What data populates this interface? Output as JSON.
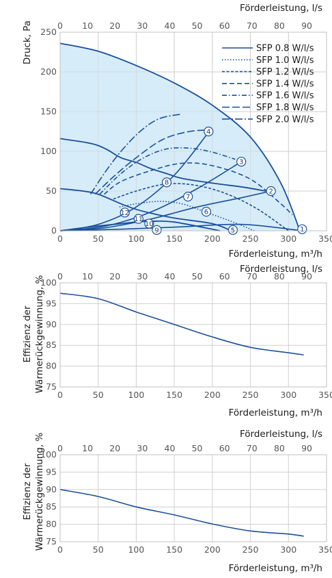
{
  "chart_data": [
    {
      "type": "line",
      "xlabel": "Förderleistung, m³/h",
      "x2label": "Förderleistung, l/s",
      "ylabel": "Druck, Pa",
      "xlim": [
        0,
        350
      ],
      "x2lim": [
        0,
        97.22
      ],
      "ylim": [
        0,
        250
      ],
      "xticks": [
        0,
        50,
        100,
        150,
        200,
        250,
        300,
        350
      ],
      "x2ticks": [
        0,
        10,
        20,
        30,
        40,
        50,
        60,
        70,
        80,
        90
      ],
      "yticks": [
        0,
        50,
        100,
        150,
        200,
        250
      ],
      "grid": true,
      "legend_position": "top-right",
      "colors": {
        "line": "#1b4f9c",
        "fill": "#d6ecf8",
        "grid": "#cfcfcf",
        "marker_fill": "#ffffff"
      },
      "fan_curves": [
        {
          "id": "1",
          "points": [
            [
              0,
              236
            ],
            [
              50,
              226
            ],
            [
              100,
              208
            ],
            [
              150,
              186
            ],
            [
              200,
              158
            ],
            [
              250,
              118
            ],
            [
              290,
              60
            ],
            [
              315,
              0
            ]
          ]
        },
        {
          "id": "2",
          "points": [
            [
              0,
              116
            ],
            [
              40,
              110
            ],
            [
              60,
              103
            ],
            [
              80,
              92
            ],
            [
              100,
              86
            ],
            [
              120,
              78
            ],
            [
              140,
              72
            ],
            [
              160,
              66
            ],
            [
              200,
              60
            ],
            [
              240,
              55
            ],
            [
              270,
              50
            ]
          ]
        },
        {
          "id": "5",
          "points": [
            [
              0,
              53
            ],
            [
              30,
              50
            ],
            [
              50,
              46
            ],
            [
              80,
              34
            ],
            [
              100,
              27
            ],
            [
              120,
              22
            ],
            [
              150,
              16
            ],
            [
              200,
              9
            ],
            [
              225,
              0
            ]
          ]
        },
        {
          "id": "9",
          "points": [
            [
              0,
              0
            ],
            [
              40,
              5
            ],
            [
              80,
              9
            ],
            [
              100,
              11
            ],
            [
              120,
              12
            ],
            [
              150,
              11
            ],
            [
              210,
              0
            ]
          ]
        }
      ],
      "system_curves": [
        {
          "id": "4",
          "points": [
            [
              0,
              0
            ],
            [
              50,
              8
            ],
            [
              100,
              30
            ],
            [
              150,
              70
            ],
            [
              195,
              124
            ]
          ]
        },
        {
          "id": "3",
          "points": [
            [
              0,
              0
            ],
            [
              60,
              6
            ],
            [
              120,
              24
            ],
            [
              180,
              53
            ],
            [
              238,
              87
            ]
          ]
        },
        {
          "id": "2",
          "points": [
            [
              0,
              0
            ],
            [
              60,
              4
            ],
            [
              120,
              15
            ],
            [
              180,
              30
            ],
            [
              240,
              42
            ],
            [
              277,
              50
            ]
          ]
        },
        {
          "id": "1",
          "points": [
            [
              0,
              0
            ],
            [
              80,
              2
            ],
            [
              160,
              5
            ],
            [
              240,
              8
            ],
            [
              318,
              0
            ]
          ]
        }
      ],
      "series": [
        {
          "name": "SFP 0.8 W/l/s",
          "style": "solid",
          "points": [
            [
              210,
              0
            ]
          ]
        },
        {
          "name": "SFP 1.0 W/l/s",
          "style": "dotted",
          "points": [
            [
              78,
              30
            ],
            [
              100,
              34
            ],
            [
              130,
              37
            ],
            [
              160,
              34
            ],
            [
              190,
              24
            ],
            [
              230,
              10
            ],
            [
              255,
              0
            ]
          ]
        },
        {
          "name": "SFP 1.2 W/l/s",
          "style": "dashed-short",
          "points": [
            [
              70,
              40
            ],
            [
              100,
              50
            ],
            [
              140,
              59
            ],
            [
              180,
              57
            ],
            [
              220,
              46
            ],
            [
              260,
              27
            ],
            [
              300,
              0
            ]
          ]
        },
        {
          "name": "SFP 1.4 W/l/s",
          "style": "dashed",
          "points": [
            [
              58,
              46
            ],
            [
              80,
              62
            ],
            [
              120,
              76
            ],
            [
              160,
              85
            ],
            [
              200,
              82
            ],
            [
              250,
              65
            ],
            [
              290,
              34
            ],
            [
              305,
              20
            ]
          ]
        },
        {
          "name": "SFP 1.6 W/l/s",
          "style": "dashdot",
          "points": [
            [
              52,
              46
            ],
            [
              80,
              72
            ],
            [
              110,
              92
            ],
            [
              140,
              103
            ],
            [
              170,
              104
            ],
            [
              200,
              99
            ],
            [
              230,
              90
            ]
          ]
        },
        {
          "name": "SFP 1.8 W/l/s",
          "style": "dashed-long",
          "points": [
            [
              46,
              46
            ],
            [
              70,
              68
            ],
            [
              100,
              92
            ],
            [
              135,
              115
            ],
            [
              170,
              125
            ],
            [
              200,
              127
            ]
          ]
        },
        {
          "name": "SFP 2.0 W/l/s",
          "style": "dashdot-long",
          "points": [
            [
              40,
              46
            ],
            [
              60,
              75
            ],
            [
              80,
              100
            ],
            [
              105,
              125
            ],
            [
              130,
              141
            ],
            [
              160,
              147
            ]
          ]
        }
      ],
      "markers": [
        {
          "label": "1",
          "x": 318,
          "y": 2
        },
        {
          "label": "2",
          "x": 277,
          "y": 50
        },
        {
          "label": "3",
          "x": 238,
          "y": 87
        },
        {
          "label": "4",
          "x": 195,
          "y": 125
        },
        {
          "label": "5",
          "x": 227,
          "y": 1
        },
        {
          "label": "6",
          "x": 192,
          "y": 24
        },
        {
          "label": "7",
          "x": 168,
          "y": 43
        },
        {
          "label": "8",
          "x": 140,
          "y": 61
        },
        {
          "label": "9",
          "x": 127,
          "y": 1
        },
        {
          "label": "10",
          "x": 117,
          "y": 9
        },
        {
          "label": "11",
          "x": 103,
          "y": 15
        },
        {
          "label": "12",
          "x": 85,
          "y": 23
        }
      ]
    },
    {
      "type": "line",
      "xlabel": "Förderleistung, m³/h",
      "x2label": "Förderleistung, l/s",
      "ylabel": "Effizienz der Wärmerückgewinnung, %",
      "ylabel_lines": [
        "Effizienz der",
        "Wärmerückgewinnung, %"
      ],
      "xlim": [
        0,
        350
      ],
      "ylim": [
        75,
        100
      ],
      "xticks": [
        0,
        50,
        100,
        150,
        200,
        250,
        300,
        350
      ],
      "x2ticks": [
        0,
        10,
        20,
        30,
        40,
        50,
        60,
        70,
        80,
        90
      ],
      "yticks": [
        75,
        80,
        85,
        90,
        95,
        100
      ],
      "grid": true,
      "series": [
        {
          "x": [
            0,
            50,
            100,
            150,
            200,
            250,
            300,
            320
          ],
          "values": [
            97.5,
            96.2,
            93,
            90,
            87,
            84.5,
            83.2,
            82.7
          ]
        }
      ]
    },
    {
      "type": "line",
      "xlabel": "Förderleistung, m³/h",
      "x2label": "Förderleistung, l/s",
      "ylabel": "Effizienz der Wärmerückgewinnung, %",
      "ylabel_lines": [
        "Effizienz der",
        "Wärmerückgewinnung, %"
      ],
      "xlim": [
        0,
        350
      ],
      "ylim": [
        75,
        100
      ],
      "xticks": [
        0,
        50,
        100,
        150,
        200,
        250,
        300,
        350
      ],
      "x2ticks": [
        0,
        10,
        20,
        30,
        40,
        50,
        60,
        70,
        80,
        90
      ],
      "yticks": [
        75,
        80,
        85,
        90,
        95,
        100
      ],
      "grid": true,
      "series": [
        {
          "x": [
            0,
            50,
            100,
            150,
            200,
            250,
            300,
            320
          ],
          "values": [
            90,
            88,
            85,
            82.7,
            80.1,
            78.1,
            77.2,
            76.6
          ]
        }
      ]
    }
  ]
}
